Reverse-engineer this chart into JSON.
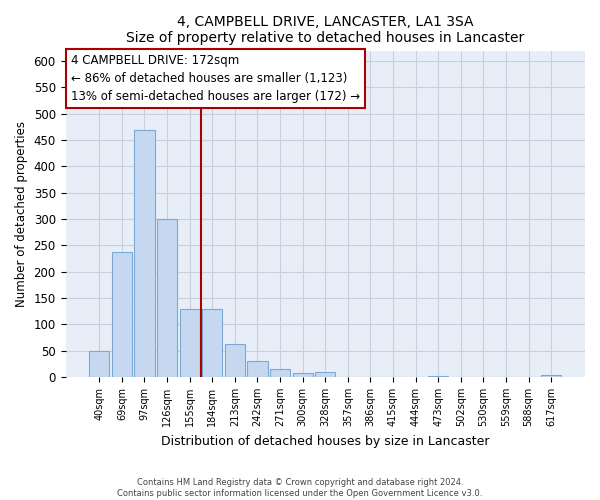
{
  "title": "4, CAMPBELL DRIVE, LANCASTER, LA1 3SA",
  "subtitle": "Size of property relative to detached houses in Lancaster",
  "xlabel": "Distribution of detached houses by size in Lancaster",
  "ylabel": "Number of detached properties",
  "bar_labels": [
    "40sqm",
    "69sqm",
    "97sqm",
    "126sqm",
    "155sqm",
    "184sqm",
    "213sqm",
    "242sqm",
    "271sqm",
    "300sqm",
    "328sqm",
    "357sqm",
    "386sqm",
    "415sqm",
    "444sqm",
    "473sqm",
    "502sqm",
    "530sqm",
    "559sqm",
    "588sqm",
    "617sqm"
  ],
  "bar_values": [
    50,
    238,
    470,
    300,
    130,
    130,
    62,
    30,
    16,
    8,
    10,
    0,
    0,
    0,
    0,
    2,
    0,
    0,
    0,
    0,
    3
  ],
  "bar_color": "#c5d8f0",
  "bar_edge_color": "#7aaad4",
  "ylim": [
    0,
    620
  ],
  "yticks": [
    0,
    50,
    100,
    150,
    200,
    250,
    300,
    350,
    400,
    450,
    500,
    550,
    600
  ],
  "vline_x": 4.5,
  "vline_color": "#aa0000",
  "annotation_title": "4 CAMPBELL DRIVE: 172sqm",
  "annotation_line1": "← 86% of detached houses are smaller (1,123)",
  "annotation_line2": "13% of semi-detached houses are larger (172) →",
  "annotation_box_color": "#ffffff",
  "annotation_box_edge": "#aa0000",
  "footer_line1": "Contains HM Land Registry data © Crown copyright and database right 2024.",
  "footer_line2": "Contains public sector information licensed under the Open Government Licence v3.0.",
  "bg_color": "#ffffff",
  "plot_bg_color": "#e8eef8",
  "grid_color": "#c8d0dc",
  "title_fontsize": 10,
  "subtitle_fontsize": 9
}
